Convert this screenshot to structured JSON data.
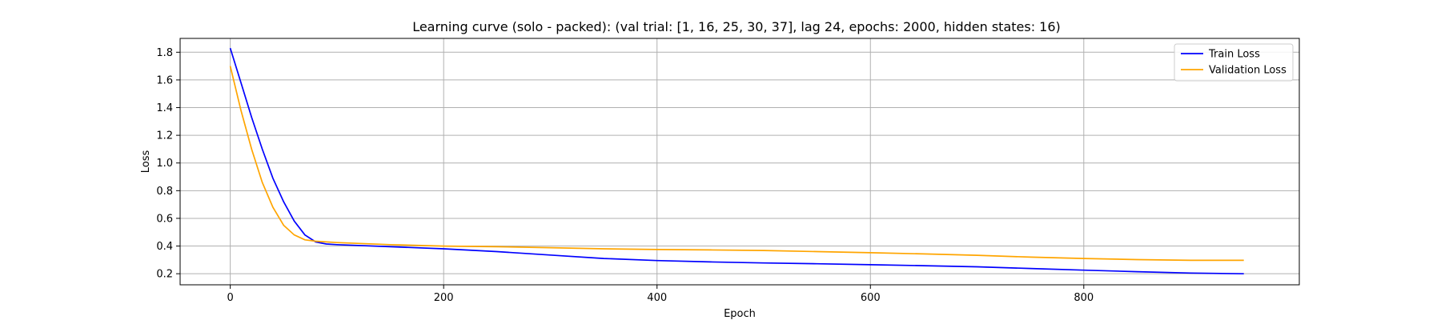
{
  "chart_data": {
    "type": "line",
    "title": "Learning curve (solo - packed): (val trial: [1, 16, 25, 30, 37], lag 24, epochs: 2000, hidden states: 16)",
    "xlabel": "Epoch",
    "ylabel": "Loss",
    "xlim": [
      -47,
      1002
    ],
    "ylim": [
      0.12,
      1.9
    ],
    "xticks": [
      0,
      200,
      400,
      600,
      800
    ],
    "yticks": [
      0.2,
      0.4,
      0.6,
      0.8,
      1.0,
      1.2,
      1.4,
      1.6,
      1.8
    ],
    "xtick_labels": [
      "0",
      "200",
      "400",
      "600",
      "800"
    ],
    "ytick_labels": [
      "0.2",
      "0.4",
      "0.6",
      "0.8",
      "1.0",
      "1.2",
      "1.4",
      "1.6",
      "1.8"
    ],
    "grid": true,
    "legend_position": "top-right",
    "series": [
      {
        "name": "Train Loss",
        "color": "#0000ff",
        "x": [
          0,
          10,
          20,
          30,
          40,
          50,
          60,
          70,
          80,
          90,
          100,
          150,
          200,
          250,
          300,
          350,
          400,
          450,
          500,
          550,
          600,
          650,
          700,
          750,
          800,
          850,
          900,
          950
        ],
        "y": [
          1.83,
          1.58,
          1.33,
          1.1,
          0.89,
          0.72,
          0.58,
          0.48,
          0.43,
          0.415,
          0.41,
          0.395,
          0.38,
          0.36,
          0.335,
          0.31,
          0.295,
          0.285,
          0.278,
          0.272,
          0.265,
          0.258,
          0.25,
          0.238,
          0.226,
          0.215,
          0.205,
          0.2
        ]
      },
      {
        "name": "Validation Loss",
        "color": "#ffa500",
        "x": [
          0,
          10,
          20,
          30,
          40,
          50,
          60,
          70,
          80,
          90,
          100,
          150,
          200,
          250,
          300,
          350,
          400,
          450,
          500,
          550,
          600,
          650,
          700,
          750,
          800,
          850,
          900,
          950
        ],
        "y": [
          1.7,
          1.38,
          1.1,
          0.86,
          0.68,
          0.55,
          0.48,
          0.445,
          0.435,
          0.43,
          0.425,
          0.41,
          0.4,
          0.395,
          0.388,
          0.38,
          0.375,
          0.372,
          0.368,
          0.36,
          0.352,
          0.343,
          0.333,
          0.32,
          0.31,
          0.302,
          0.297,
          0.297
        ]
      }
    ]
  }
}
